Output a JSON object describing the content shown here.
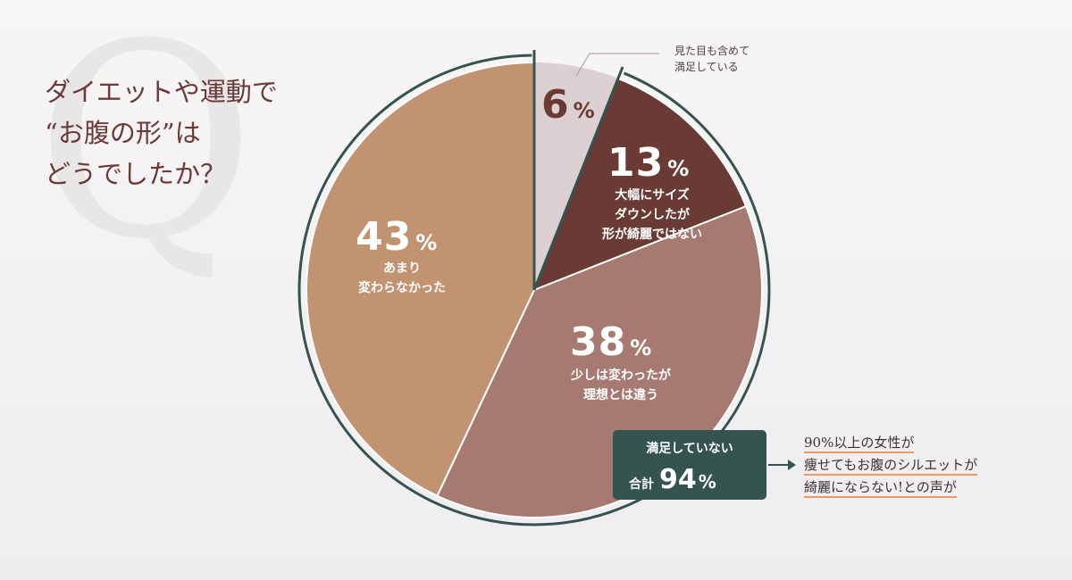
{
  "question": {
    "lines": [
      "ダイエットや運動で",
      "“お腹の形”は",
      "どうでしたか？"
    ],
    "decor_letter": "Q"
  },
  "chart_data": {
    "type": "pie",
    "unit": "%",
    "slices": [
      {
        "value": 6,
        "label_lines": [],
        "color": "#ddd0d2"
      },
      {
        "value": 13,
        "label_lines": [
          "大幅にサイズ",
          "ダウンしたが",
          "形が綺麗ではない"
        ],
        "color": "#6a3a34"
      },
      {
        "value": 38,
        "label_lines": [
          "少しは変わったが",
          "理想とは違う"
        ],
        "color": "#a67a70"
      },
      {
        "value": 43,
        "label_lines": [
          "あまり",
          "変わらなかった"
        ],
        "color": "#c19370"
      }
    ],
    "callout": {
      "slice": 0,
      "lines": [
        "見た目も含めて",
        "満足している"
      ]
    },
    "border_color": "#35544f"
  },
  "summary": {
    "title": "満足していない",
    "total_label": "合計",
    "total_value": "94",
    "unit": "%"
  },
  "note": {
    "lines": [
      "90%以上の女性が",
      "痩せてもお腹のシルエットが",
      "綺麗にならない!との声が"
    ],
    "underline_color": "#e89a64"
  }
}
